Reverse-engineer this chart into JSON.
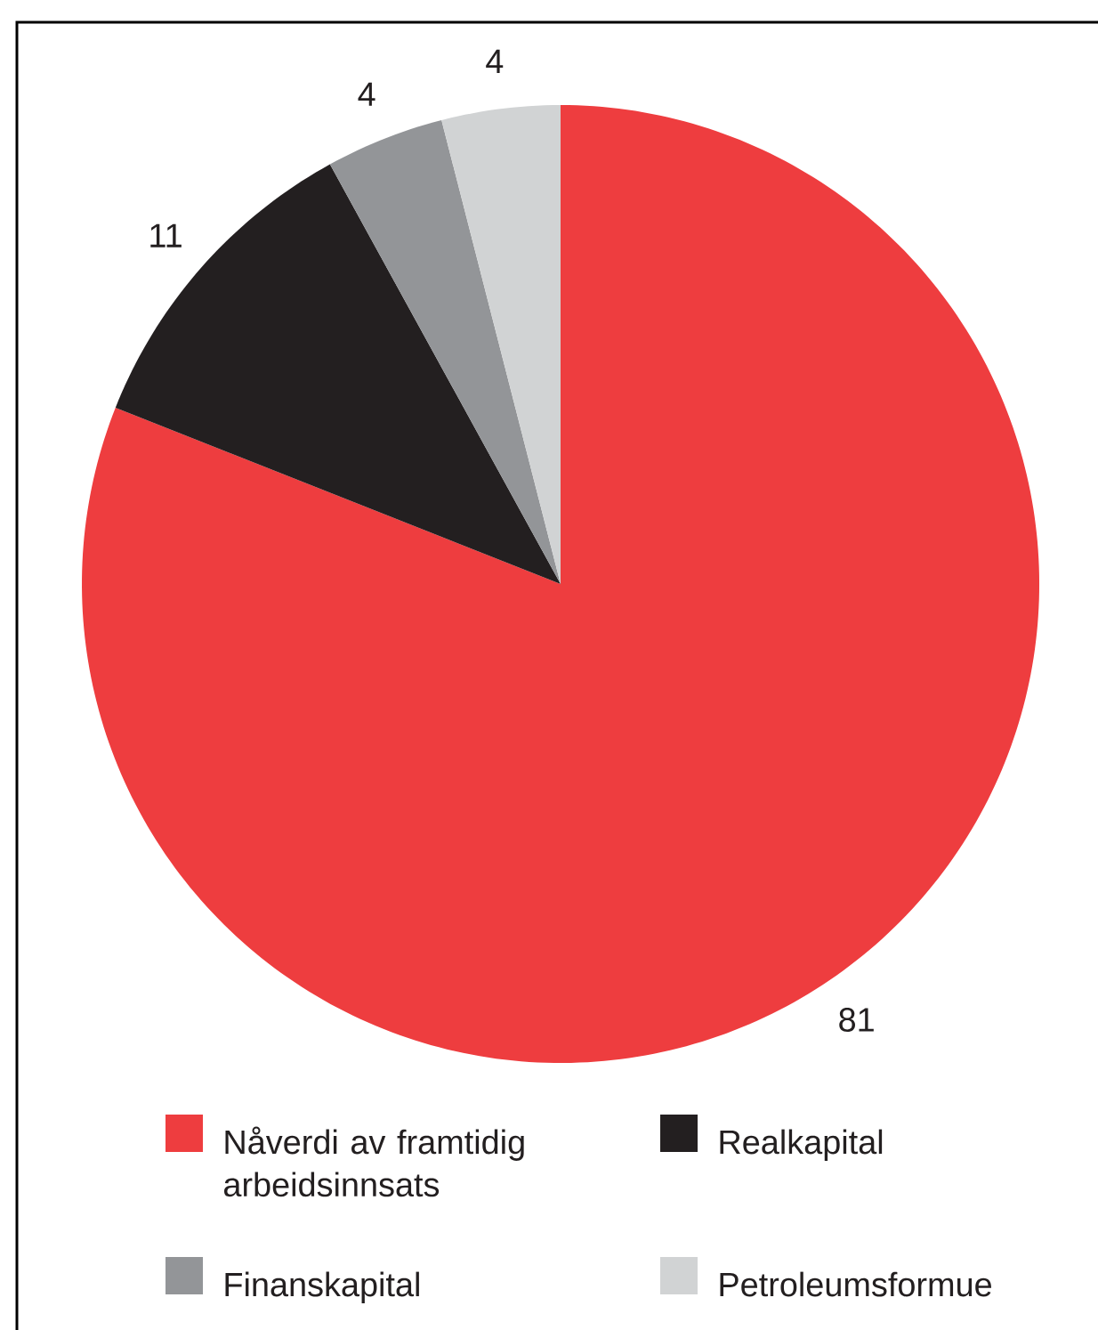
{
  "chart_data": {
    "type": "pie",
    "categories": [
      "Nåverdi av framtidig arbeidsinnsats",
      "Realkapital",
      "Finanskapital",
      "Petroleumsformue"
    ],
    "values": [
      81,
      11,
      4,
      4
    ],
    "colors": [
      "#ee3d3f",
      "#231f20",
      "#939598",
      "#d1d3d4"
    ],
    "data_labels": true,
    "legend": "bottom"
  }
}
